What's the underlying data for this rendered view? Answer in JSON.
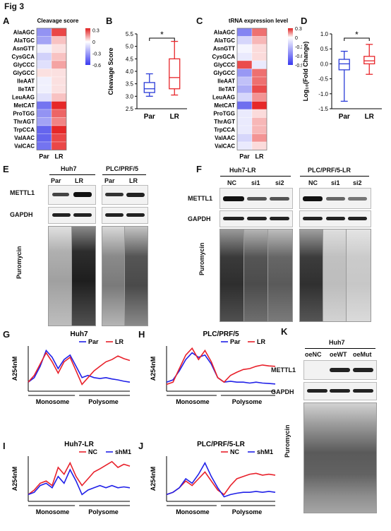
{
  "figure_title": "Fig 3",
  "panel_letters": {
    "A": "A",
    "B": "B",
    "C": "C",
    "D": "D",
    "E": "E",
    "F": "F",
    "G": "G",
    "H": "H",
    "I": "I",
    "J": "J",
    "K": "K"
  },
  "chart_data": [
    {
      "panel": "A",
      "type": "heatmap",
      "title": "Cleavage score",
      "rows": [
        "AlaAGC",
        "AlaTGC",
        "AsnGTT",
        "CysGCA",
        "GlyCCC",
        "GlyGCC",
        "IleAAT",
        "IleTAT",
        "LeuAAG",
        "MetCAT",
        "ProTGG",
        "ThrAGT",
        "TrpCCA",
        "ValAAC",
        "ValCAC"
      ],
      "columns": [
        "Par",
        "LR"
      ],
      "values": [
        [
          -0.35,
          0.3
        ],
        [
          -0.3,
          0.1
        ],
        [
          -0.05,
          0.05
        ],
        [
          -0.15,
          0.1
        ],
        [
          -0.1,
          0.15
        ],
        [
          0.05,
          0.05
        ],
        [
          -0.05,
          0.05
        ],
        [
          -0.05,
          0.05
        ],
        [
          -0.1,
          0.1
        ],
        [
          -0.45,
          0.35
        ],
        [
          -0.35,
          0.25
        ],
        [
          -0.3,
          0.2
        ],
        [
          -0.5,
          0.35
        ],
        [
          -0.5,
          0.3
        ],
        [
          -0.45,
          0.3
        ]
      ],
      "colorbar_ticks": [
        "0.3",
        "0",
        "-0.3",
        "-0.6"
      ],
      "colorbar_range": [
        -0.6,
        0.35
      ]
    },
    {
      "panel": "B",
      "type": "box",
      "categories": [
        "Par",
        "LR"
      ],
      "ylabel": "Cleavage Score",
      "ylim": [
        2.5,
        5.5
      ],
      "yticks": [
        "2.5",
        "3.0",
        "3.5",
        "4.0",
        "4.5",
        "5.0",
        "5.5"
      ],
      "boxes": [
        {
          "name": "Par",
          "min": 3.0,
          "q1": 3.15,
          "median": 3.3,
          "q3": 3.55,
          "max": 3.9,
          "color": "#2b3cd8"
        },
        {
          "name": "LR",
          "min": 3.05,
          "q1": 3.3,
          "median": 3.75,
          "q3": 4.5,
          "max": 5.2,
          "color": "#e8262b"
        }
      ],
      "significance": "*"
    },
    {
      "panel": "C",
      "type": "heatmap",
      "title": "tRNA expression level",
      "rows": [
        "AlaAGC",
        "AlaTGC",
        "AsnGTT",
        "CysGCA",
        "GlyCCC",
        "GlyGCC",
        "IleAAT",
        "IleTAT",
        "LeuAAG",
        "MetCAT",
        "ProTGG",
        "ThrAGT",
        "TrpCCA",
        "ValAAC",
        "ValCAC"
      ],
      "columns": [
        "Par",
        "LR"
      ],
      "values": [
        [
          -0.6,
          0.2
        ],
        [
          -0.2,
          0.1
        ],
        [
          -0.05,
          0.05
        ],
        [
          -0.1,
          0.05
        ],
        [
          0.25,
          -0.1
        ],
        [
          -0.5,
          0.2
        ],
        [
          -0.3,
          0.2
        ],
        [
          -0.4,
          0.25
        ],
        [
          -0.2,
          0.15
        ],
        [
          -0.7,
          0.3
        ],
        [
          -0.1,
          0.05
        ],
        [
          -0.1,
          0.1
        ],
        [
          -0.1,
          0.1
        ],
        [
          -0.2,
          0.15
        ],
        [
          -0.1,
          0.05
        ]
      ],
      "colorbar_ticks": [
        "0.3",
        "0",
        "-0.3",
        "-0.6",
        "-0.9"
      ],
      "colorbar_range": [
        -0.9,
        0.3
      ]
    },
    {
      "panel": "D",
      "type": "box",
      "categories": [
        "Par",
        "LR"
      ],
      "ylabel": "Log₁₀(Fold Change)",
      "ylim": [
        -1.5,
        1.0
      ],
      "yticks": [
        "-1.5",
        "-1.0",
        "-0.5",
        "0.0",
        "0.5",
        "1.0"
      ],
      "boxes": [
        {
          "name": "Par",
          "min": -1.25,
          "q1": -0.2,
          "median": 0.0,
          "q3": 0.15,
          "max": 0.42,
          "color": "#2b3cd8"
        },
        {
          "name": "LR",
          "min": -0.35,
          "q1": 0.0,
          "median": 0.1,
          "q3": 0.25,
          "max": 0.65,
          "color": "#e8262b"
        }
      ],
      "significance": "*"
    },
    {
      "panel": "G",
      "type": "line",
      "title": "Huh7",
      "ylabel": "A254nM",
      "region_labels": [
        "Monosome",
        "Polysome"
      ],
      "series": [
        {
          "name": "Par",
          "color": "#2020e8",
          "values": [
            0.2,
            0.3,
            0.55,
            0.9,
            0.75,
            0.5,
            0.7,
            0.8,
            0.55,
            0.3,
            0.35,
            0.3,
            0.28,
            0.3,
            0.27,
            0.25,
            0.22,
            0.2
          ]
        },
        {
          "name": "LR",
          "color": "#e8202a",
          "values": [
            0.2,
            0.35,
            0.6,
            0.85,
            0.65,
            0.4,
            0.65,
            0.75,
            0.45,
            0.15,
            0.3,
            0.45,
            0.55,
            0.65,
            0.7,
            0.78,
            0.72,
            0.68
          ]
        }
      ]
    },
    {
      "panel": "H",
      "type": "line",
      "title": "PLC/PRF/5",
      "ylabel": "A254nM",
      "region_labels": [
        "Monosome",
        "Polysome"
      ],
      "series": [
        {
          "name": "Par",
          "color": "#2020e8",
          "values": [
            0.2,
            0.25,
            0.45,
            0.7,
            0.85,
            0.75,
            0.8,
            0.6,
            0.3,
            0.2,
            0.22,
            0.2,
            0.2,
            0.18,
            0.2,
            0.18,
            0.17,
            0.16
          ]
        },
        {
          "name": "LR",
          "color": "#e8202a",
          "values": [
            0.15,
            0.2,
            0.5,
            0.8,
            0.95,
            0.7,
            0.9,
            0.65,
            0.3,
            0.2,
            0.35,
            0.42,
            0.48,
            0.5,
            0.55,
            0.58,
            0.56,
            0.55
          ]
        }
      ]
    },
    {
      "panel": "I",
      "type": "line",
      "title": "Huh7-LR",
      "ylabel": "A254nM",
      "region_labels": [
        "Monosome",
        "Polysome"
      ],
      "series": [
        {
          "name": "NC",
          "color": "#e8202a",
          "values": [
            0.15,
            0.25,
            0.4,
            0.45,
            0.35,
            0.75,
            0.6,
            0.85,
            0.55,
            0.35,
            0.5,
            0.65,
            0.72,
            0.8,
            0.88,
            0.75,
            0.82,
            0.78
          ]
        },
        {
          "name": "shM1",
          "color": "#2020e8",
          "values": [
            0.15,
            0.2,
            0.35,
            0.4,
            0.3,
            0.55,
            0.4,
            0.7,
            0.45,
            0.15,
            0.25,
            0.3,
            0.35,
            0.3,
            0.35,
            0.3,
            0.32,
            0.3
          ]
        }
      ]
    },
    {
      "panel": "J",
      "type": "line",
      "title": "PLC/PRF/5-LR",
      "ylabel": "A254nM",
      "region_labels": [
        "Monosome",
        "Polysome"
      ],
      "series": [
        {
          "name": "NC",
          "color": "#e8202a",
          "values": [
            0.15,
            0.2,
            0.3,
            0.45,
            0.35,
            0.5,
            0.65,
            0.45,
            0.25,
            0.15,
            0.35,
            0.5,
            0.55,
            0.6,
            0.62,
            0.58,
            0.6,
            0.58
          ]
        },
        {
          "name": "shM1",
          "color": "#2020e8",
          "values": [
            0.15,
            0.2,
            0.3,
            0.5,
            0.4,
            0.6,
            0.85,
            0.55,
            0.3,
            0.1,
            0.15,
            0.18,
            0.2,
            0.2,
            0.22,
            0.2,
            0.22,
            0.2
          ]
        }
      ]
    }
  ],
  "panel_E": {
    "groups": [
      {
        "name": "Huh7",
        "lanes": [
          "Par",
          "LR"
        ]
      },
      {
        "name": "PLC/PRF/5",
        "lanes": [
          "Par",
          "LR"
        ]
      }
    ],
    "rows": {
      "row1": "METTL1",
      "row2": "GAPDH",
      "row3": "Puromycin"
    }
  },
  "panel_F": {
    "groups": [
      {
        "name": "Huh7-LR",
        "lanes": [
          "NC",
          "si1",
          "si2"
        ]
      },
      {
        "name": "PLC/PRF/5-LR",
        "lanes": [
          "NC",
          "si1",
          "si2"
        ]
      }
    ],
    "rows": {
      "row1": "METTL1",
      "row2": "GAPDH",
      "row3": "Puromycin"
    }
  },
  "panel_K": {
    "group": "Huh7",
    "lanes": [
      "oeNC",
      "oeWT",
      "oeMut"
    ],
    "rows": {
      "row1": "METTL1",
      "row2": "GAPDH",
      "row3": "Puromycin"
    }
  }
}
